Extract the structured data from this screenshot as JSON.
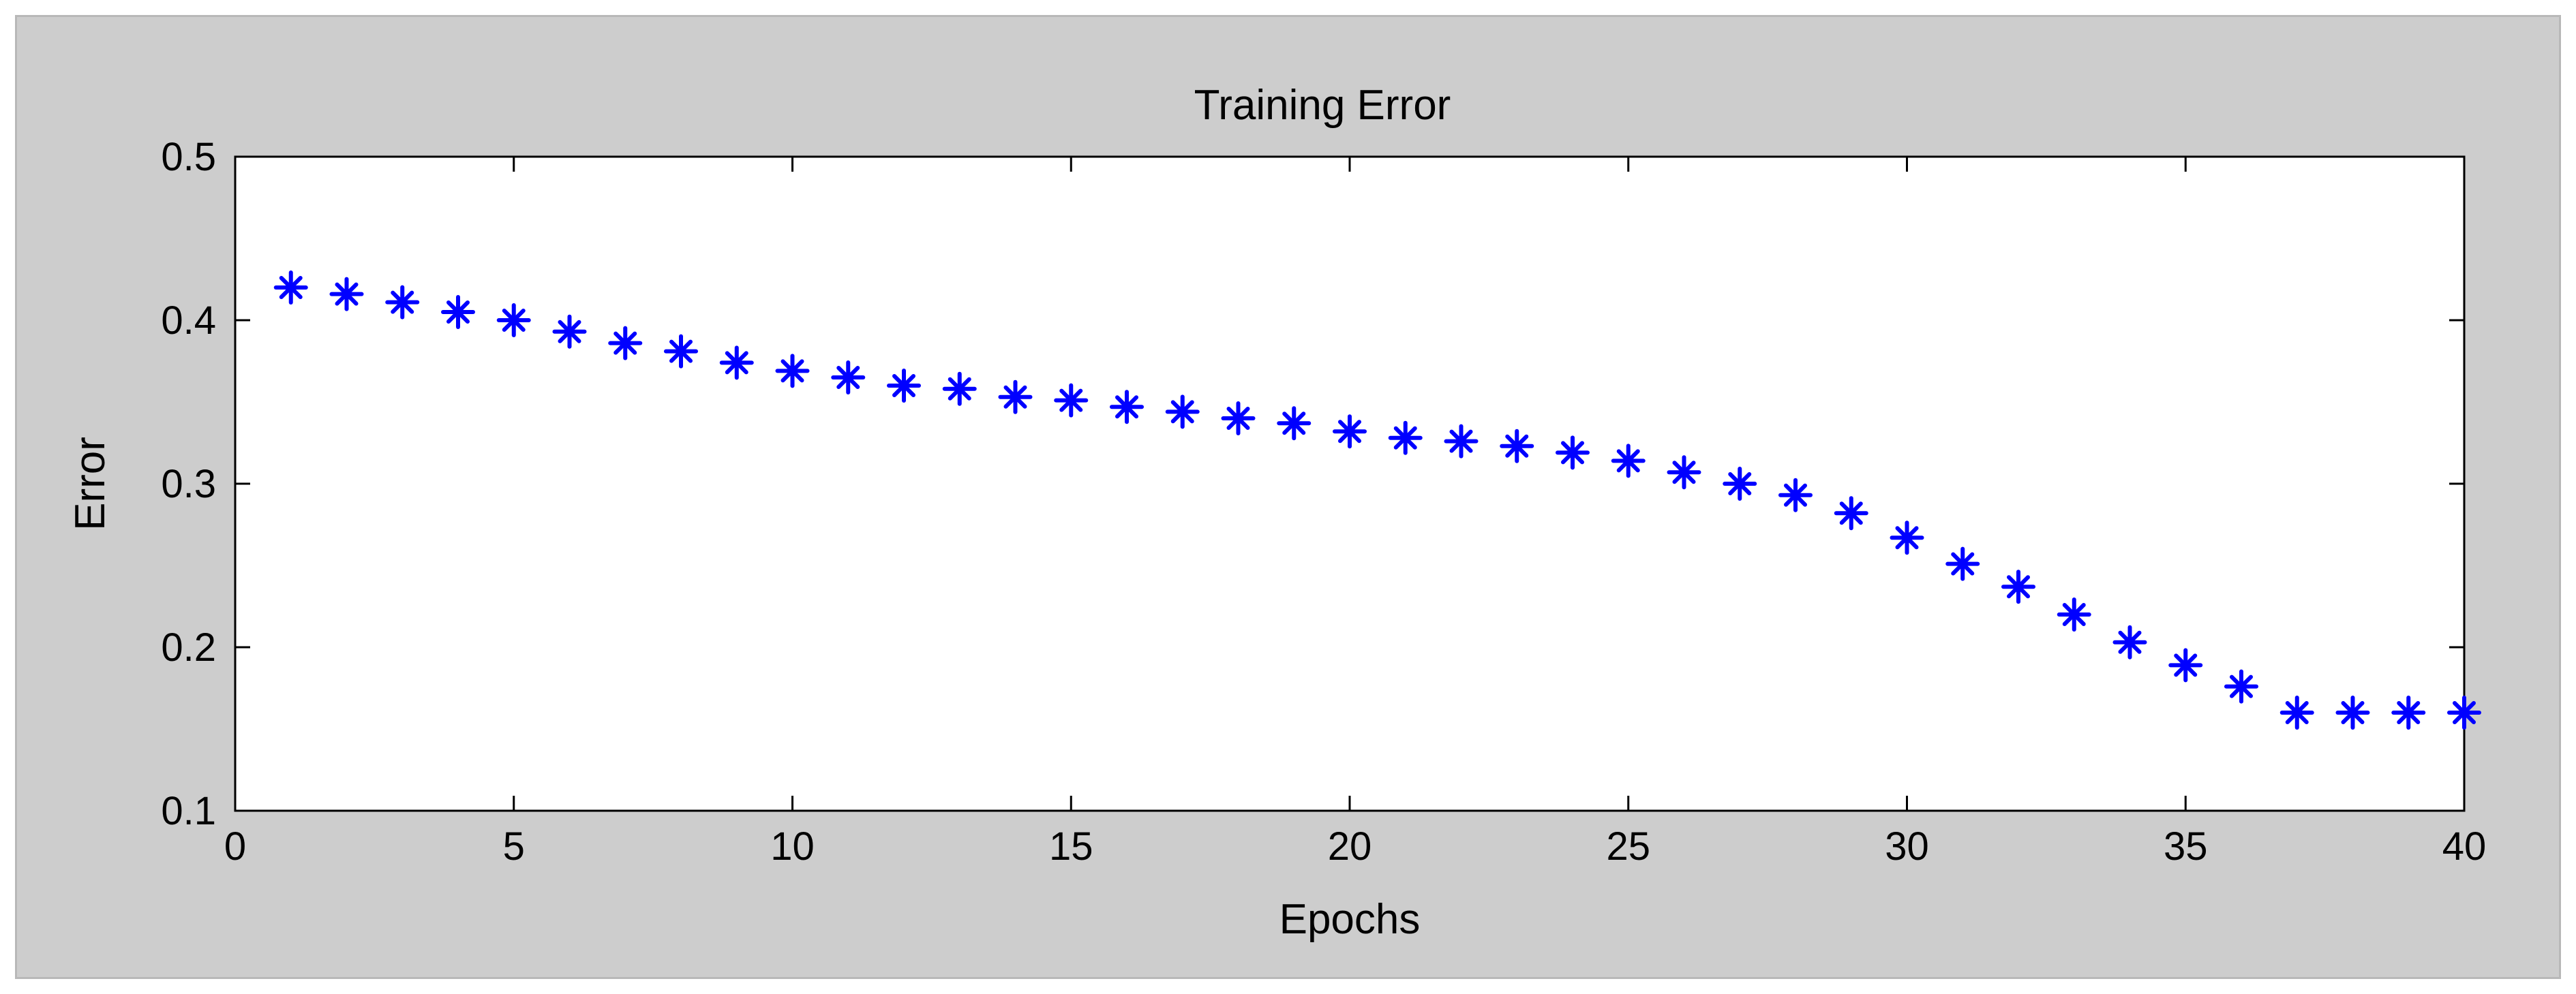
{
  "chart_data": {
    "type": "scatter",
    "title": "Training Error",
    "xlabel": "Epochs",
    "ylabel": "Error",
    "xlim": [
      0,
      40
    ],
    "ylim": [
      0.1,
      0.5
    ],
    "xticks": [
      "0",
      "5",
      "10",
      "15",
      "20",
      "25",
      "30",
      "35",
      "40"
    ],
    "yticks": [
      "0.1",
      "0.2",
      "0.3",
      "0.4",
      "0.5"
    ],
    "marker": "*",
    "marker_color": "#0000ff",
    "grid": false,
    "series": [
      {
        "x": [
          1,
          2,
          3,
          4,
          5,
          6,
          7,
          8,
          9,
          10,
          11,
          12,
          13,
          14,
          15,
          16,
          17,
          18,
          19,
          20,
          21,
          22,
          23,
          24,
          25,
          26,
          27,
          28,
          29,
          30,
          31,
          32,
          33,
          34,
          35,
          36,
          37,
          38,
          39,
          40
        ],
        "values": [
          0.42,
          0.416,
          0.411,
          0.405,
          0.4,
          0.393,
          0.386,
          0.381,
          0.374,
          0.369,
          0.365,
          0.36,
          0.358,
          0.353,
          0.351,
          0.347,
          0.344,
          0.34,
          0.337,
          0.332,
          0.328,
          0.326,
          0.323,
          0.319,
          0.314,
          0.307,
          0.3,
          0.293,
          0.282,
          0.267,
          0.251,
          0.237,
          0.22,
          0.203,
          0.189,
          0.176,
          0.16,
          0.16,
          0.16,
          0.16
        ]
      }
    ]
  }
}
